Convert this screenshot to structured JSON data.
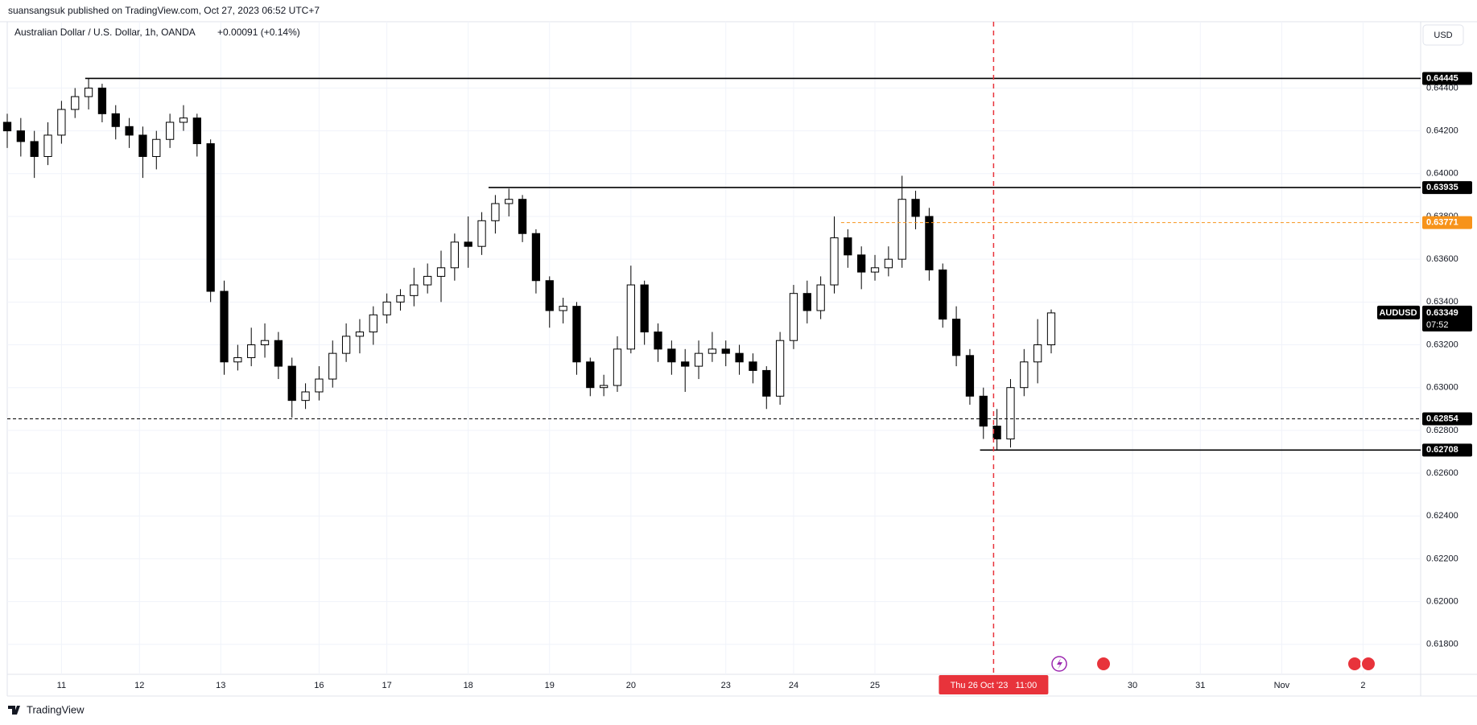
{
  "header": {
    "publisher": "suansangsuk published on TradingView.com, Oct 27, 2023 06:52 UTC+7",
    "currency_button": "USD"
  },
  "footer": {
    "brand": "TradingView"
  },
  "chart_data": {
    "type": "candlestick",
    "title": "Australian Dollar / U.S. Dollar, 1h, OANDA",
    "change": "+0.00091 (+0.14%)",
    "x": [
      0,
      4,
      8,
      12,
      16,
      20,
      24,
      28,
      32,
      36,
      40,
      44,
      48,
      52,
      56,
      60,
      64,
      68,
      72,
      76,
      80,
      84,
      88,
      92,
      96,
      100,
      104,
      108,
      112,
      116,
      120,
      124,
      128,
      132,
      136,
      140,
      144,
      148,
      152,
      156,
      160,
      164,
      168,
      172,
      176,
      180,
      184,
      188,
      192,
      196,
      200,
      204,
      208,
      212,
      216,
      220,
      224,
      228,
      232,
      236,
      240,
      244,
      248,
      252,
      256,
      260,
      264,
      268,
      272,
      276,
      280,
      284,
      288,
      292,
      296,
      300,
      304,
      308
    ],
    "open": [
      0.6424,
      0.642,
      0.6415,
      0.6408,
      0.6418,
      0.643,
      0.6436,
      0.644,
      0.6428,
      0.6422,
      0.6418,
      0.6408,
      0.6416,
      0.6424,
      0.6426,
      0.6414,
      0.6345,
      0.6312,
      0.6314,
      0.632,
      0.6322,
      0.631,
      0.6294,
      0.6298,
      0.6304,
      0.6316,
      0.6324,
      0.6326,
      0.6334,
      0.634,
      0.6343,
      0.6348,
      0.6352,
      0.6356,
      0.6368,
      0.6366,
      0.6378,
      0.6386,
      0.6388,
      0.6372,
      0.635,
      0.6336,
      0.6338,
      0.6312,
      0.63,
      0.6301,
      0.6318,
      0.6348,
      0.6326,
      0.6318,
      0.6312,
      0.631,
      0.6316,
      0.6318,
      0.6316,
      0.6312,
      0.6308,
      0.6296,
      0.6322,
      0.6344,
      0.6336,
      0.6348,
      0.637,
      0.6362,
      0.6354,
      0.6356,
      0.636,
      0.6388,
      0.638,
      0.6355,
      0.6332,
      0.6315,
      0.6296,
      0.6282,
      0.6276,
      0.63,
      0.6312,
      0.632
    ],
    "high": [
      0.6428,
      0.6426,
      0.642,
      0.6424,
      0.6434,
      0.644,
      0.64445,
      0.6442,
      0.6432,
      0.6426,
      0.6422,
      0.642,
      0.6428,
      0.6432,
      0.6428,
      0.6416,
      0.635,
      0.632,
      0.6328,
      0.633,
      0.6326,
      0.6314,
      0.6302,
      0.631,
      0.6322,
      0.633,
      0.6332,
      0.6338,
      0.6344,
      0.6346,
      0.6356,
      0.6358,
      0.6364,
      0.6372,
      0.638,
      0.6382,
      0.639,
      0.6393,
      0.639,
      0.6374,
      0.6352,
      0.6342,
      0.634,
      0.6314,
      0.6306,
      0.6324,
      0.6357,
      0.635,
      0.633,
      0.6322,
      0.6318,
      0.6322,
      0.6326,
      0.6322,
      0.632,
      0.6316,
      0.631,
      0.6326,
      0.6348,
      0.635,
      0.6352,
      0.638,
      0.6374,
      0.6366,
      0.6362,
      0.6366,
      0.6399,
      0.6392,
      0.6384,
      0.6358,
      0.6338,
      0.6318,
      0.63,
      0.629,
      0.6304,
      0.6318,
      0.6332,
      0.63365
    ],
    "low": [
      0.6412,
      0.6408,
      0.6398,
      0.6404,
      0.6414,
      0.6426,
      0.643,
      0.6424,
      0.6416,
      0.6412,
      0.6398,
      0.6402,
      0.6412,
      0.642,
      0.6408,
      0.634,
      0.6306,
      0.6308,
      0.631,
      0.6314,
      0.6304,
      0.6286,
      0.629,
      0.6294,
      0.63,
      0.6312,
      0.6316,
      0.632,
      0.633,
      0.6336,
      0.6338,
      0.6344,
      0.634,
      0.635,
      0.6356,
      0.6362,
      0.6372,
      0.638,
      0.6368,
      0.6344,
      0.6328,
      0.633,
      0.6306,
      0.6296,
      0.6296,
      0.6298,
      0.6316,
      0.632,
      0.6312,
      0.6306,
      0.6298,
      0.6304,
      0.6312,
      0.631,
      0.6306,
      0.6302,
      0.629,
      0.6292,
      0.6318,
      0.633,
      0.6332,
      0.6344,
      0.6356,
      0.6346,
      0.635,
      0.6352,
      0.6356,
      0.6374,
      0.635,
      0.6328,
      0.631,
      0.6292,
      0.6276,
      0.62708,
      0.6272,
      0.6296,
      0.6302,
      0.6316
    ],
    "close": [
      0.642,
      0.6415,
      0.6408,
      0.6418,
      0.643,
      0.6436,
      0.644,
      0.6428,
      0.6422,
      0.6418,
      0.6408,
      0.6416,
      0.6424,
      0.6426,
      0.6414,
      0.6345,
      0.6312,
      0.6314,
      0.632,
      0.6322,
      0.631,
      0.6294,
      0.6298,
      0.6304,
      0.6316,
      0.6324,
      0.6326,
      0.6334,
      0.634,
      0.6343,
      0.6348,
      0.6352,
      0.6356,
      0.6368,
      0.6366,
      0.6378,
      0.6386,
      0.6388,
      0.6372,
      0.635,
      0.6336,
      0.6338,
      0.6312,
      0.63,
      0.6301,
      0.6318,
      0.6348,
      0.6326,
      0.6318,
      0.6312,
      0.631,
      0.6316,
      0.6318,
      0.6316,
      0.6312,
      0.6308,
      0.6296,
      0.6322,
      0.6344,
      0.6336,
      0.6348,
      0.637,
      0.6362,
      0.6354,
      0.6356,
      0.636,
      0.6388,
      0.638,
      0.6355,
      0.6332,
      0.6315,
      0.6296,
      0.6282,
      0.6276,
      0.63,
      0.6312,
      0.632,
      0.63349
    ],
    "up_color": "#ffffff",
    "down_color": "#000000",
    "xlim": [
      0,
      417
    ],
    "xticks": [
      {
        "value": 16,
        "label": "11"
      },
      {
        "value": 39,
        "label": "12"
      },
      {
        "value": 63,
        "label": "13"
      },
      {
        "value": 92,
        "label": "16"
      },
      {
        "value": 112,
        "label": "17"
      },
      {
        "value": 136,
        "label": "18"
      },
      {
        "value": 160,
        "label": "19"
      },
      {
        "value": 184,
        "label": "20"
      },
      {
        "value": 212,
        "label": "23"
      },
      {
        "value": 232,
        "label": "24"
      },
      {
        "value": 256,
        "label": "25"
      },
      {
        "value": 332,
        "label": "30"
      },
      {
        "value": 352,
        "label": "31"
      },
      {
        "value": 376,
        "label": "Nov"
      },
      {
        "value": 400,
        "label": "2"
      }
    ],
    "ylim": [
      0.6166,
      0.6471
    ],
    "yticks": [
      {
        "value": 0.618,
        "label": "0.61800"
      },
      {
        "value": 0.62,
        "label": "0.62000"
      },
      {
        "value": 0.622,
        "label": "0.62200"
      },
      {
        "value": 0.624,
        "label": "0.62400"
      },
      {
        "value": 0.626,
        "label": "0.62600"
      },
      {
        "value": 0.628,
        "label": "0.62800"
      },
      {
        "value": 0.63,
        "label": "0.63000"
      },
      {
        "value": 0.632,
        "label": "0.63200"
      },
      {
        "value": 0.634,
        "label": "0.63400"
      },
      {
        "value": 0.636,
        "label": "0.63600"
      },
      {
        "value": 0.638,
        "label": "0.63800"
      },
      {
        "value": 0.64,
        "label": "0.64000"
      },
      {
        "value": 0.642,
        "label": "0.64200"
      },
      {
        "value": 0.644,
        "label": "0.64400"
      }
    ],
    "grid": true,
    "levels": [
      {
        "value": 0.64445,
        "start": 23,
        "color": "#000000",
        "dashed": false
      },
      {
        "value": 0.63935,
        "start": 142,
        "color": "#000000",
        "dashed": false
      },
      {
        "value": 0.63771,
        "start": 246,
        "color": "#f7931a",
        "dashed": true
      },
      {
        "value": 0.62854,
        "start": 0,
        "color": "#000000",
        "dashed": true
      },
      {
        "value": 0.62708,
        "start": 287,
        "color": "#000000",
        "dashed": false
      }
    ],
    "last_price": {
      "symbol": "AUDUSD",
      "value": 0.63349,
      "countdown": "07:52"
    },
    "crosshair": {
      "x": 291,
      "label": "Thu 26 Oct '23   11:00",
      "color": "#e8333b"
    }
  }
}
